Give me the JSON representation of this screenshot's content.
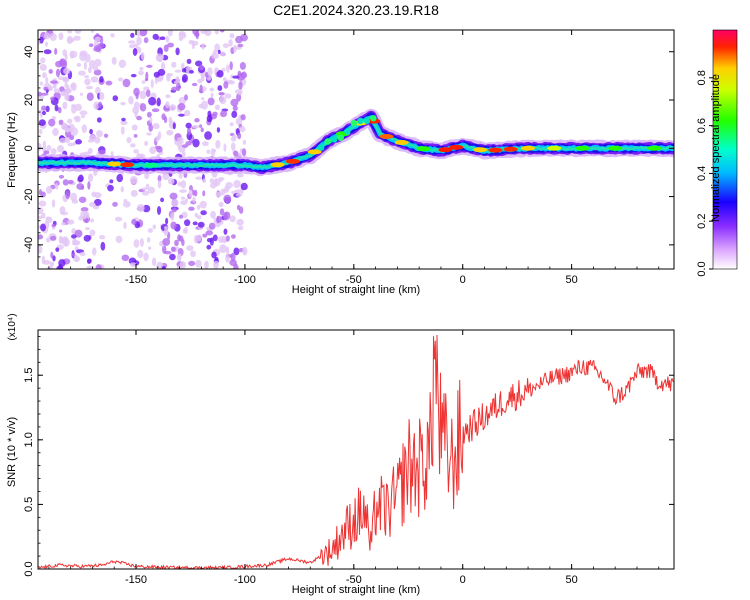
{
  "title": "C2E1.2024.320.23.19.R18",
  "chart_data": [
    {
      "type": "heatmap",
      "title": "C2E1.2024.320.23.19.R18",
      "xlabel": "Height of straight line (km)",
      "ylabel": "Frequency (Hz)",
      "xlim": [
        -195,
        97
      ],
      "ylim": [
        -50,
        49
      ],
      "xticks": [
        -150,
        -100,
        -50,
        0,
        50
      ],
      "yticks": [
        -40,
        -20,
        0,
        20,
        40
      ],
      "colorbar": {
        "label": "Normalized spectral amplitude",
        "range": [
          0,
          1
        ],
        "ticks": [
          "0.0",
          "0.2",
          "0.4",
          "0.6",
          "0.8"
        ],
        "colors": [
          "#ffffff",
          "#7b00ff",
          "#0000ff",
          "#00ffff",
          "#00ff00",
          "#ffff00",
          "#ff0000"
        ]
      },
      "ridge": {
        "x": [
          -195,
          -170,
          -150,
          -120,
          -100,
          -92,
          -80,
          -70,
          -62,
          -55,
          -48,
          -42,
          -38,
          -30,
          -20,
          -10,
          0,
          10,
          30,
          50,
          70,
          97
        ],
        "y": [
          -6,
          -6,
          -7,
          -7,
          -7,
          -8,
          -6,
          -3,
          3,
          6,
          10,
          13,
          6,
          3,
          0,
          -1,
          1,
          -1,
          0,
          0,
          0,
          0
        ]
      },
      "noise_region_x": [
        -195,
        -100
      ]
    },
    {
      "type": "line",
      "xlabel": "Height of straight line (km)",
      "ylabel": "SNR (10 * v/v)",
      "y_multiplier": "(x10⁴)",
      "xlim": [
        -195,
        97
      ],
      "ylim": [
        0,
        1.85
      ],
      "xticks": [
        -150,
        -100,
        -50,
        0,
        50
      ],
      "yticks": [
        0.0,
        0.5,
        1.0,
        1.5
      ],
      "ytick_labels": [
        "0.0",
        "0.5",
        "1.0",
        "1.5"
      ],
      "color": "#ee3333",
      "series": [
        {
          "x": [
            -195,
            -185,
            -175,
            -165,
            -160,
            -150,
            -130,
            -110,
            -100,
            -90,
            -80,
            -70,
            -60,
            -55,
            -50,
            -45,
            -42,
            -40,
            -35,
            -30,
            -25,
            -20,
            -15,
            -13,
            -10,
            -5,
            0,
            10,
            20,
            30,
            40,
            50,
            55,
            60,
            65,
            70,
            75,
            80,
            85,
            90,
            97
          ],
          "values": [
            0.01,
            0.03,
            0.02,
            0.03,
            0.06,
            0.02,
            0.01,
            0.01,
            0.02,
            0.03,
            0.08,
            0.05,
            0.15,
            0.28,
            0.38,
            0.45,
            0.15,
            0.5,
            0.45,
            0.55,
            0.8,
            0.78,
            0.92,
            1.65,
            1.0,
            0.82,
            1.05,
            1.18,
            1.32,
            1.38,
            1.47,
            1.52,
            1.57,
            1.55,
            1.47,
            1.32,
            1.38,
            1.52,
            1.54,
            1.45,
            1.42
          ]
        }
      ]
    }
  ]
}
